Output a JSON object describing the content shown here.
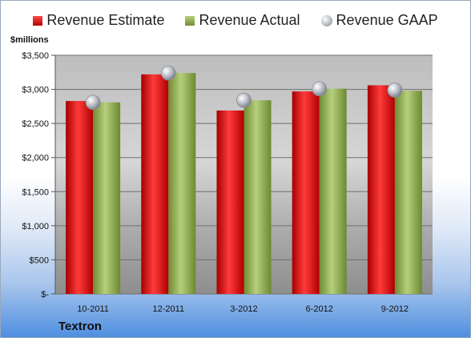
{
  "colors": {
    "estimate": "#d01818",
    "actual": "#8fad50",
    "gaap": "#c0c4cc"
  },
  "chart_data": {
    "type": "bar",
    "title": "",
    "ylabel": "$millions",
    "xlabel": "",
    "company": "Textron",
    "categories": [
      "10-2011",
      "12-2011",
      "3-2012",
      "6-2012",
      "9-2012"
    ],
    "ylim": [
      0,
      3500
    ],
    "yticks": [
      0,
      500,
      1000,
      1500,
      2000,
      2500,
      3000,
      3500
    ],
    "ytick_labels": [
      "$-",
      "$500",
      "$1,000",
      "$1,500",
      "$2,000",
      "$2,500",
      "$3,000",
      "$3,500"
    ],
    "grid": true,
    "legend_position": "top",
    "series": [
      {
        "name": "Revenue Estimate",
        "kind": "bar",
        "values": [
          2830,
          3220,
          2690,
          2970,
          3060
        ]
      },
      {
        "name": "Revenue Actual",
        "kind": "bar",
        "values": [
          2810,
          3240,
          2840,
          3010,
          2980
        ]
      },
      {
        "name": "Revenue GAAP",
        "kind": "marker",
        "values": [
          2810,
          3240,
          2840,
          3010,
          2990
        ]
      }
    ]
  }
}
